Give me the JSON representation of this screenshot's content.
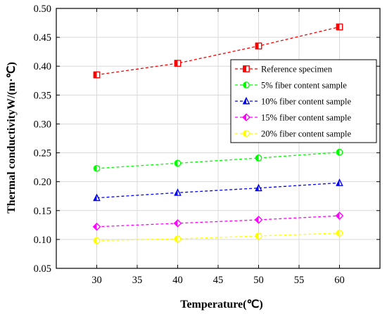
{
  "chart_data": {
    "type": "line",
    "xlabel": "Temperature(℃)",
    "ylabel": "Thermal conductivityW/(m·℃)",
    "xlim": [
      25,
      65
    ],
    "ylim": [
      0.05,
      0.5
    ],
    "x_ticks": [
      "30",
      "35",
      "40",
      "45",
      "50",
      "55",
      "60"
    ],
    "y_ticks": [
      "0.05",
      "0.10",
      "0.15",
      "0.20",
      "0.25",
      "0.30",
      "0.35",
      "0.40",
      "0.45",
      "0.50"
    ],
    "x_tick_values": [
      30,
      35,
      40,
      45,
      50,
      55,
      60
    ],
    "y_tick_values": [
      0.05,
      0.1,
      0.15,
      0.2,
      0.25,
      0.3,
      0.35,
      0.4,
      0.45,
      0.5
    ],
    "grid": true,
    "legend_position": "right, upper middle",
    "x": [
      30,
      40,
      50,
      60
    ],
    "series": [
      {
        "name": "Reference specimen",
        "values": [
          0.385,
          0.405,
          0.435,
          0.468
        ],
        "color": "#ff0000",
        "marker": "half-square"
      },
      {
        "name": "5% fiber content sample",
        "values": [
          0.223,
          0.232,
          0.241,
          0.251
        ],
        "color": "#00ff00",
        "marker": "half-circle"
      },
      {
        "name": "10% fiber content sample",
        "values": [
          0.172,
          0.181,
          0.189,
          0.198
        ],
        "color": "#0000ff",
        "marker": "half-triangle"
      },
      {
        "name": "15% fiber content sample",
        "values": [
          0.122,
          0.128,
          0.134,
          0.141
        ],
        "color": "#ff00ff",
        "marker": "half-diamond"
      },
      {
        "name": "20% fiber content sample",
        "values": [
          0.098,
          0.101,
          0.106,
          0.111
        ],
        "color": "#ffff00",
        "marker": "half-circle"
      }
    ]
  }
}
